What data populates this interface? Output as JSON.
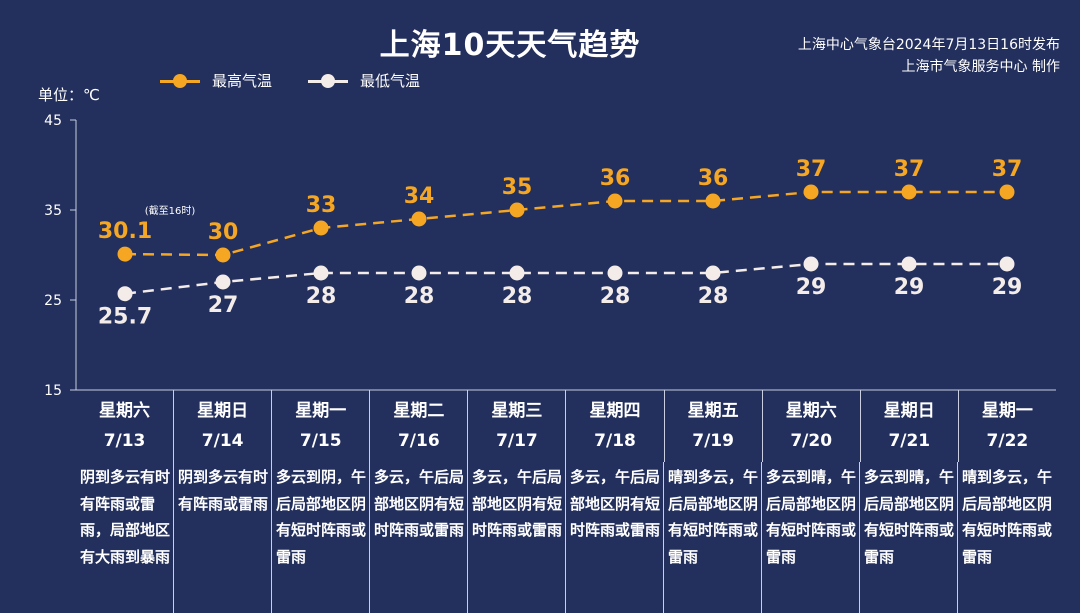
{
  "title": "上海10天天气趋势",
  "source_line1": "上海中心气象台2024年7月13日16时发布",
  "source_line2": "上海市气象服务中心 制作",
  "unit_label": "单位：℃",
  "note": "(截至16时)",
  "colors": {
    "background": "#232f5c",
    "high": "#f5a623",
    "low": "#f4ece8",
    "axis": "#c9cee0"
  },
  "chart_data": {
    "type": "line",
    "categories": [
      "7/13",
      "7/14",
      "7/15",
      "7/16",
      "7/17",
      "7/18",
      "7/19",
      "7/20",
      "7/21",
      "7/22"
    ],
    "series": [
      {
        "name": "最高气温",
        "values": [
          30.1,
          30,
          33,
          34,
          35,
          36,
          36,
          37,
          37,
          37
        ],
        "labels": [
          "30.1",
          "30",
          "33",
          "34",
          "35",
          "36",
          "36",
          "37",
          "37",
          "37"
        ]
      },
      {
        "name": "最低气温",
        "values": [
          25.7,
          27,
          28,
          28,
          28,
          28,
          28,
          29,
          29,
          29
        ],
        "labels": [
          "25.7",
          "27",
          "28",
          "28",
          "28",
          "28",
          "28",
          "29",
          "29",
          "29"
        ]
      }
    ],
    "ylim": [
      15,
      45
    ],
    "yticks": [
      15,
      25,
      35,
      45
    ],
    "grid": false,
    "line_style": "dashed",
    "legend_position": "top-left"
  },
  "days": [
    {
      "weekday": "星期六",
      "date": "7/13",
      "desc": "阴到多云有时有阵雨或雷雨，局部地区有大雨到暴雨"
    },
    {
      "weekday": "星期日",
      "date": "7/14",
      "desc": "阴到多云有时有阵雨或雷雨"
    },
    {
      "weekday": "星期一",
      "date": "7/15",
      "desc": "多云到阴，午后局部地区阴有短时阵雨或雷雨"
    },
    {
      "weekday": "星期二",
      "date": "7/16",
      "desc": "多云，午后局部地区阴有短时阵雨或雷雨"
    },
    {
      "weekday": "星期三",
      "date": "7/17",
      "desc": "多云，午后局部地区阴有短时阵雨或雷雨"
    },
    {
      "weekday": "星期四",
      "date": "7/18",
      "desc": "多云，午后局部地区阴有短时阵雨或雷雨"
    },
    {
      "weekday": "星期五",
      "date": "7/19",
      "desc": "晴到多云，午后局部地区阴有短时阵雨或雷雨"
    },
    {
      "weekday": "星期六",
      "date": "7/20",
      "desc": "多云到晴，午后局部地区阴有短时阵雨或雷雨"
    },
    {
      "weekday": "星期日",
      "date": "7/21",
      "desc": "多云到晴，午后局部地区阴有短时阵雨或雷雨"
    },
    {
      "weekday": "星期一",
      "date": "7/22",
      "desc": "晴到多云，午后局部地区阴有短时阵雨或雷雨"
    }
  ]
}
